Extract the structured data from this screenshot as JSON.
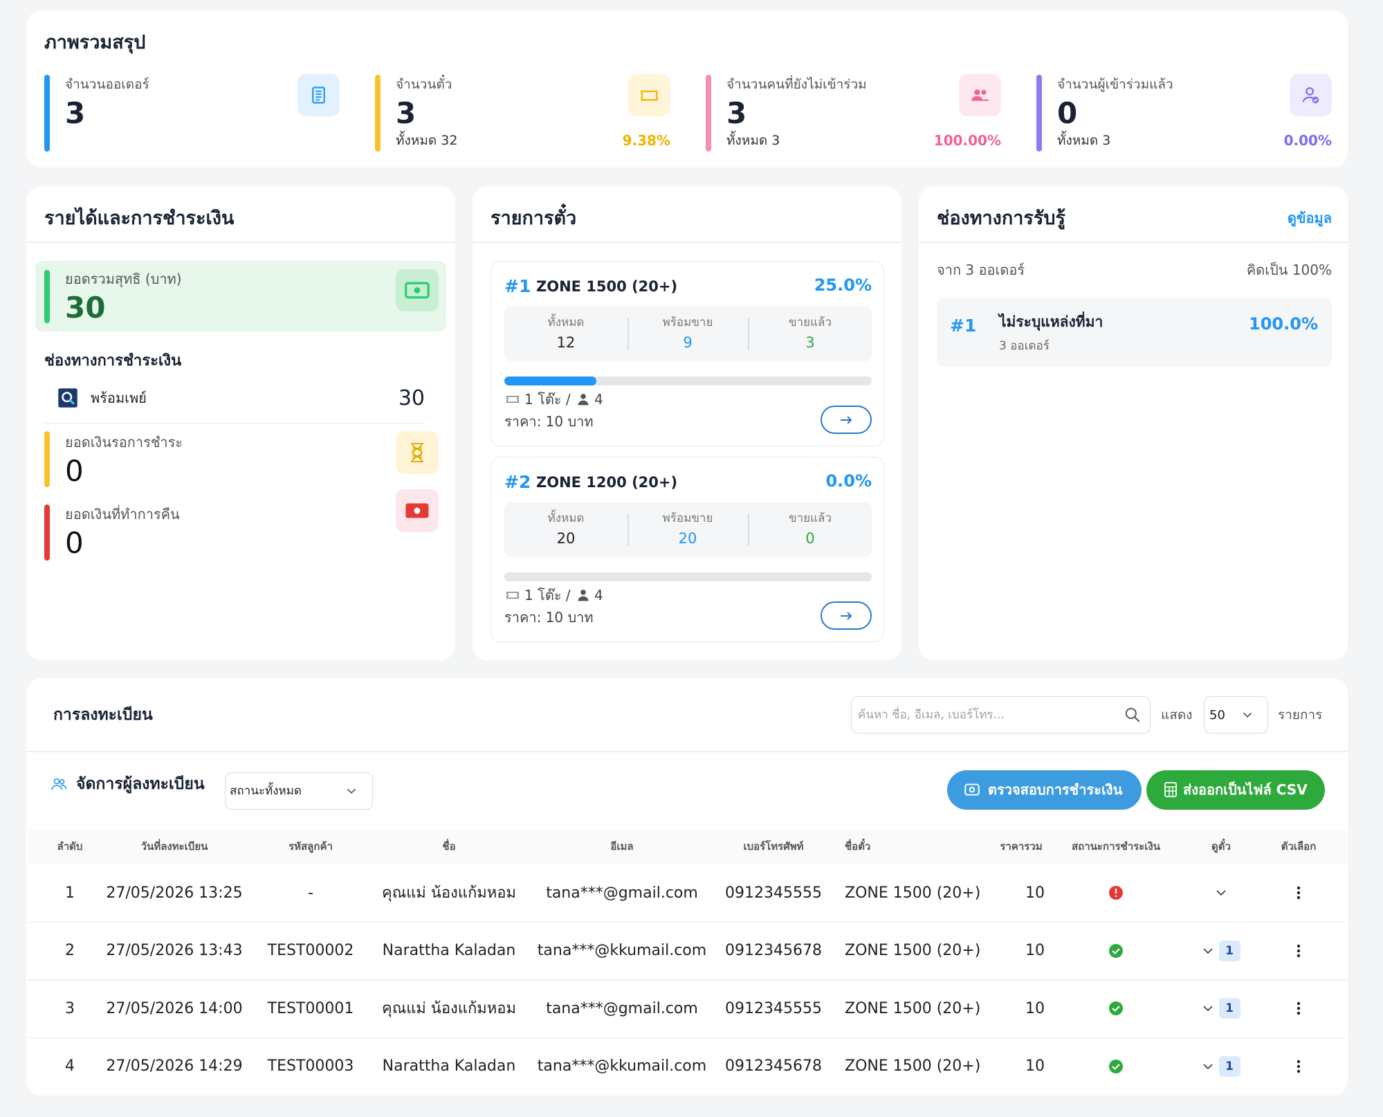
{
  "summary": {
    "title": "ภาพรวมสรุป",
    "stats": [
      {
        "label": "จำนวนออเดอร์",
        "value": "3"
      },
      {
        "label": "จำนวนตั๋ว",
        "value": "3",
        "sub": "ทั้งหมด 32",
        "percent": "9.38%"
      },
      {
        "label": "จำนวนคนที่ยังไม่เข้าร่วม",
        "value": "3",
        "sub": "ทั้งหมด 3",
        "percent": "100.00%"
      },
      {
        "label": "จำนวนผู้เข้าร่วมแล้ว",
        "value": "0",
        "sub": "ทั้งหมด 3",
        "percent": "0.00%"
      }
    ]
  },
  "revenue": {
    "title": "รายได้และการชำระเงิน",
    "net": {
      "label": "ยอดรวมสุทธิ (บาท)",
      "value": "30"
    },
    "channels_title": "ช่องทางการชำระเงิน",
    "channels": [
      {
        "name": "พร้อมเพย์",
        "amount": "30"
      }
    ],
    "pending": {
      "label": "ยอดเงินรอการชำระ",
      "value": "0"
    },
    "refund": {
      "label": "ยอดเงินที่ทำการคืน",
      "value": "0"
    }
  },
  "tickets": {
    "title": "รายการตั๋ว",
    "zones": [
      {
        "rank": "#1",
        "name": "ZONE 1500 (20+)",
        "percent": "25.0%",
        "total_label": "ทั้งหมด",
        "total": "12",
        "available_label": "พร้อมขาย",
        "available": "9",
        "sold_label": "ขายแล้ว",
        "sold": "3",
        "per_unit": "1 โต๊ะ /",
        "seats": "4",
        "price": "ราคา: 10 บาท"
      },
      {
        "rank": "#2",
        "name": "ZONE 1200 (20+)",
        "percent": "0.0%",
        "total_label": "ทั้งหมด",
        "total": "20",
        "available_label": "พร้อมขาย",
        "available": "20",
        "sold_label": "ขายแล้ว",
        "sold": "0",
        "per_unit": "1 โต๊ะ /",
        "seats": "4",
        "price": "ราคา: 10 บาท"
      }
    ]
  },
  "sources": {
    "title": "ช่องทางการรับรู้",
    "link": "ดูข้อมูล",
    "from": "จาก 3 ออเดอร์",
    "share": "คิดเป็น 100%",
    "items": [
      {
        "rank": "#1",
        "name": "ไม่ระบุแหล่งที่มา",
        "orders": "3 ออเดอร์",
        "percent": "100.0%"
      }
    ]
  },
  "registration": {
    "title": "การลงทะเบียน",
    "search_placeholder": "ค้นหา ชื่อ, อีเมล, เบอร์โทร...",
    "show_label": "แสดง",
    "page_size": "50",
    "items_label": "รายการ",
    "manage_title": "จัดการผู้ลงทะเบียน",
    "status_filter": "สถานะทั้งหมด",
    "check_payment": "ตรวจสอบการชำระเงิน",
    "export_csv": "ส่งออกเป็นไฟล์ CSV",
    "columns": [
      "ลำดับ",
      "วันที่ลงทะเบียน",
      "รหัสลูกค้า",
      "ชื่อ",
      "อีเมล",
      "เบอร์โทรศัพท์",
      "ชื่อตั๋ว",
      "ราคารวม",
      "สถานะการชำระเงิน",
      "ดูตั๋ว",
      "ตัวเลือก"
    ],
    "rows": [
      {
        "cells": [
          "1",
          "27/05/2026 13:25",
          "-",
          "คุณแม่ น้องแก้มหอม",
          "tana***@gmail.com",
          "0912345555",
          "ZONE 1500 (20+)",
          "10"
        ],
        "tickets": null
      },
      {
        "cells": [
          "2",
          "27/05/2026 13:43",
          "TEST00002",
          "Narattha Kaladan",
          "tana***@kkumail.com",
          "0912345678",
          "ZONE 1500 (20+)",
          "10"
        ],
        "tickets": "1"
      },
      {
        "cells": [
          "3",
          "27/05/2026 14:00",
          "TEST00001",
          "คุณแม่ น้องแก้มหอม",
          "tana***@gmail.com",
          "0912345555",
          "ZONE 1500 (20+)",
          "10"
        ],
        "tickets": "1"
      },
      {
        "cells": [
          "4",
          "27/05/2026 14:29",
          "TEST00003",
          "Narattha Kaladan",
          "tana***@kkumail.com",
          "0912345678",
          "ZONE 1500 (20+)",
          "10"
        ],
        "tickets": "1"
      }
    ]
  }
}
